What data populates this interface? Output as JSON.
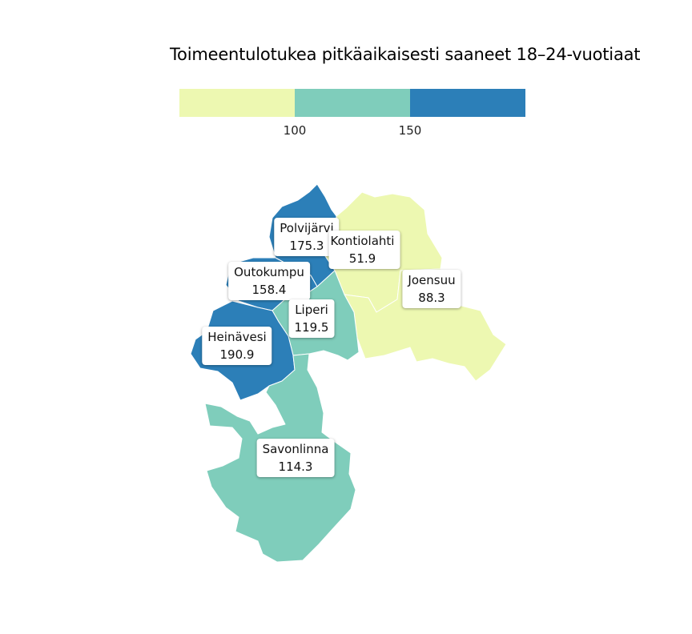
{
  "title": "Toimeentulotukea pitkäaikaisesti saaneet 18–24-vuotiaat",
  "legend": {
    "bins": [
      {
        "color": "#edf8b1"
      },
      {
        "color": "#7fcdbb"
      },
      {
        "color": "#2c7fb8"
      }
    ],
    "ticks": [
      "100",
      "150"
    ]
  },
  "regions": [
    {
      "name": "Polvijärvi",
      "value": "175.3",
      "color": "#2c7fb8"
    },
    {
      "name": "Kontiolahti",
      "value": "51.9",
      "color": "#edf8b1"
    },
    {
      "name": "Outokumpu",
      "value": "158.4",
      "color": "#2c7fb8"
    },
    {
      "name": "Joensuu",
      "value": "88.3",
      "color": "#edf8b1"
    },
    {
      "name": "Liperi",
      "value": "119.5",
      "color": "#7fcdbb"
    },
    {
      "name": "Heinävesi",
      "value": "190.9",
      "color": "#2c7fb8"
    },
    {
      "name": "Savonlinna",
      "value": "114.3",
      "color": "#7fcdbb"
    }
  ]
}
